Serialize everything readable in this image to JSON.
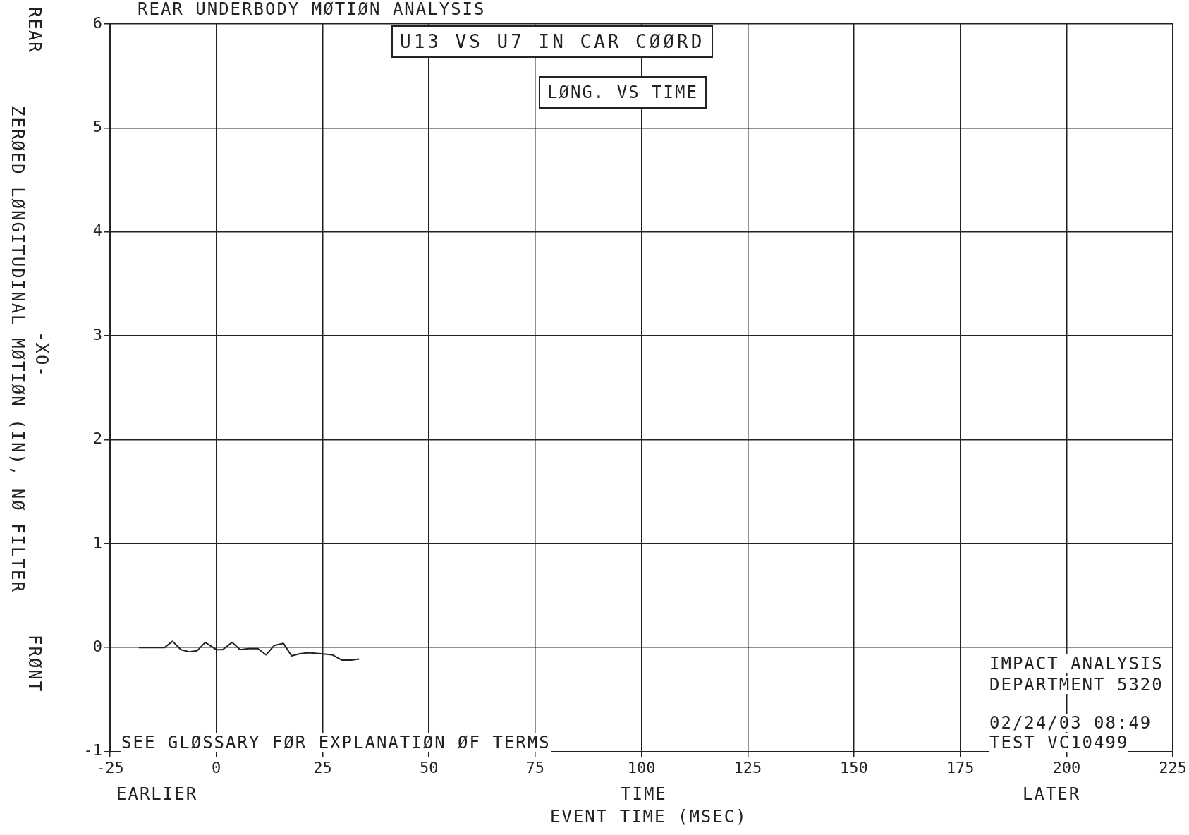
{
  "chart_data": {
    "type": "line",
    "title": "REAR UNDERBODY MØTIØN ANALYSIS",
    "xlabel": "EVENT TIME (MSEC)",
    "ylabel": "ZERØED LØNGITUDINAL MØTIØN (IN), NØ FILTER",
    "annotations": [
      "U13 VS U7 IN CAR CØØRD",
      "LØNG. VS TIME",
      "SEE GLØSSARY FØR EXPLANATIØN ØF TERMS",
      "IMPACT ANALYSIS",
      "DEPARTMENT 5320",
      "02/24/03  08:49",
      "TEST  VC10499",
      "TIME",
      "EARLIER",
      "LATER",
      "-XO-",
      "REAR",
      "FRØNT"
    ],
    "series": [
      {
        "color": "#222222",
        "x": [
          -18.2,
          -13,
          -12.2,
          -10.3,
          -8.3,
          -6.4,
          -4.5,
          -2.6,
          0,
          1.5,
          3.7,
          5.6,
          7.6,
          9.8,
          11.7,
          13.6,
          15.8,
          17.7,
          19.6,
          21.8,
          24.6,
          27.3,
          29.5,
          31.7,
          33.6
        ],
        "values": [
          0,
          0,
          0,
          0.06,
          -0.02,
          -0.04,
          -0.03,
          0.05,
          -0.02,
          -0.02,
          0.05,
          -0.02,
          -0.01,
          -0.01,
          -0.07,
          0.02,
          0.04,
          -0.08,
          -0.06,
          -0.05,
          -0.06,
          -0.07,
          -0.12,
          -0.12,
          -0.11
        ]
      }
    ],
    "xlim": [
      -25,
      225
    ],
    "xticks": [
      -25,
      0,
      25,
      50,
      75,
      100,
      125,
      150,
      175,
      200,
      225
    ],
    "ylim": [
      -1,
      6
    ],
    "yticks": [
      -1,
      0,
      1,
      2,
      3,
      4,
      5,
      6
    ],
    "grid": true,
    "legend": false,
    "marker": "none",
    "line_style": "solid"
  }
}
